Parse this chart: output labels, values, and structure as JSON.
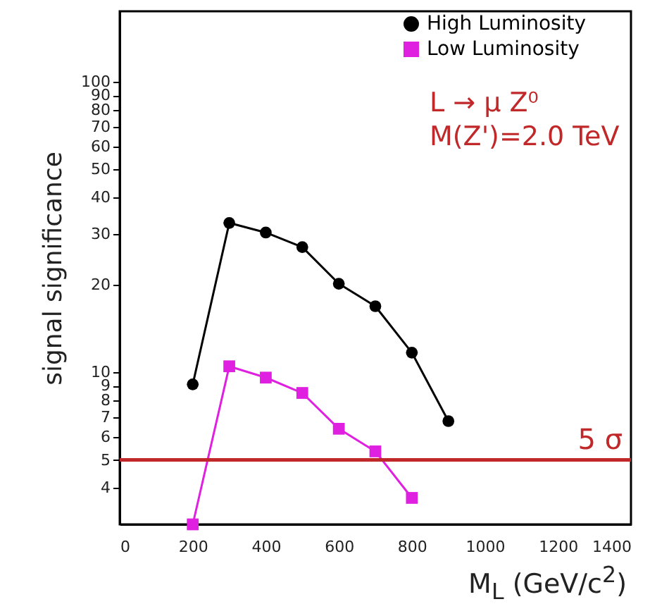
{
  "chart_data": {
    "type": "line",
    "xlabel": "M$_{L}$ (GeV/c$^{2}$)",
    "ylabel": "signal significance",
    "annotations": [
      "L → μ Z⁰",
      "M(Z')=2.0 TeV"
    ],
    "x": [
      200,
      300,
      400,
      500,
      600,
      700,
      800,
      900
    ],
    "series": [
      {
        "name": "High Luminosity",
        "color": "#000000",
        "marker": "circle",
        "values": [
          9.1,
          32.7,
          30.3,
          27,
          20.2,
          16.9,
          11.7,
          6.8
        ]
      },
      {
        "name": "Low  Luminosity",
        "color": "#e020e0",
        "marker": "square",
        "values": [
          3.0,
          10.5,
          9.6,
          8.5,
          6.4,
          5.35,
          3.7,
          null
        ]
      }
    ],
    "log": true,
    "xlim": [
      0,
      1400
    ],
    "xticks": [
      0,
      200,
      400,
      600,
      800,
      1000,
      1200,
      1400
    ],
    "ylim": [
      3,
      175
    ],
    "yticks": [
      4,
      5,
      6,
      7,
      8,
      9,
      10,
      20,
      30,
      40,
      50,
      60,
      70,
      80,
      90,
      100
    ],
    "ref_lines": [
      {
        "axis": "y",
        "value": 5,
        "label": "5 σ",
        "color": "#c0282a"
      }
    ],
    "legend": "top right",
    "grid": false
  }
}
